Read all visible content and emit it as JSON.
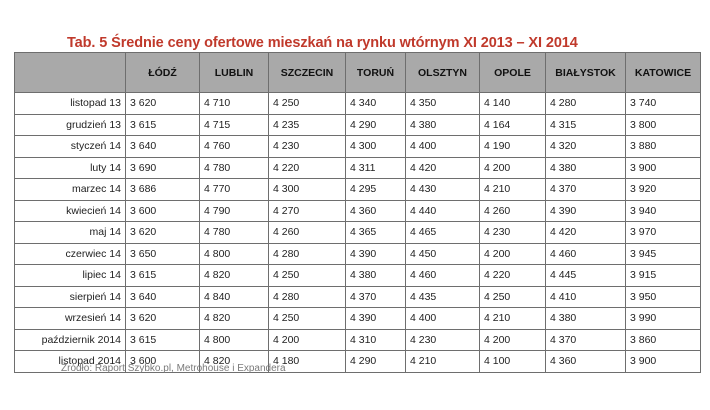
{
  "title": "Tab. 5 Średnie ceny ofertowe mieszkań  na rynku wtórnym XI 2013 – XI 2014",
  "columns": [
    "ŁÓDŹ",
    "LUBLIN",
    "SZCZECIN",
    "TORUŃ",
    "OLSZTYN",
    "OPOLE",
    "BIAŁYSTOK",
    "KATOWICE"
  ],
  "rows": [
    {
      "label": "listopad 13",
      "values": [
        "3 620",
        "4 710",
        "4 250",
        "4 340",
        "4 350",
        "4 140",
        "4 280",
        "3 740"
      ]
    },
    {
      "label": "grudzień 13",
      "values": [
        "3 615",
        "4 715",
        "4 235",
        "4 290",
        "4 380",
        "4 164",
        "4 315",
        "3 800"
      ]
    },
    {
      "label": "styczeń 14",
      "values": [
        "3 640",
        "4 760",
        "4 230",
        "4 300",
        "4 400",
        "4 190",
        "4 320",
        "3 880"
      ]
    },
    {
      "label": "luty 14",
      "values": [
        "3 690",
        "4 780",
        "4 220",
        "4 311",
        "4 420",
        "4 200",
        "4 380",
        "3 900"
      ]
    },
    {
      "label": "marzec 14",
      "values": [
        "3 686",
        "4 770",
        "4 300",
        "4 295",
        "4 430",
        "4 210",
        "4 370",
        "3 920"
      ]
    },
    {
      "label": "kwiecień 14",
      "values": [
        "3 600",
        "4 790",
        "4 270",
        "4 360",
        "4 440",
        "4 260",
        "4 390",
        "3 940"
      ]
    },
    {
      "label": "maj 14",
      "values": [
        "3 620",
        "4 780",
        "4 260",
        "4 365",
        "4 465",
        "4 230",
        "4 420",
        "3 970"
      ]
    },
    {
      "label": "czerwiec 14",
      "values": [
        "3 650",
        "4 800",
        "4 280",
        "4 390",
        "4 450",
        "4 200",
        "4 460",
        "3 945"
      ]
    },
    {
      "label": "lipiec 14",
      "values": [
        "3 615",
        "4 820",
        "4 250",
        "4 380",
        "4 460",
        "4 220",
        "4 445",
        "3 915"
      ]
    },
    {
      "label": "sierpień 14",
      "values": [
        "3 640",
        "4 840",
        "4 280",
        "4 370",
        "4 435",
        "4 250",
        "4 410",
        "3 950"
      ]
    },
    {
      "label": "wrzesień 14",
      "values": [
        "3 620",
        "4 820",
        "4 250",
        "4 390",
        "4 400",
        "4 210",
        "4 380",
        "3 990"
      ]
    },
    {
      "label": "październik 2014",
      "values": [
        "3 615",
        "4 800",
        "4 200",
        "4 310",
        "4 230",
        "4 200",
        "4 370",
        "3 860"
      ]
    },
    {
      "label": "listopad 2014",
      "values": [
        "3 600",
        "4 820",
        "4 180",
        "4 290",
        "4 210",
        "4 100",
        "4 360",
        "3 900"
      ]
    }
  ],
  "source": "Źródło: Raport Szybko.pl, Metrohouse i Expandera",
  "colors": {
    "title": "#c0392b",
    "header_bg": "#a9a9a9",
    "border": "#6e6e6e",
    "source": "#7a7a7a"
  }
}
